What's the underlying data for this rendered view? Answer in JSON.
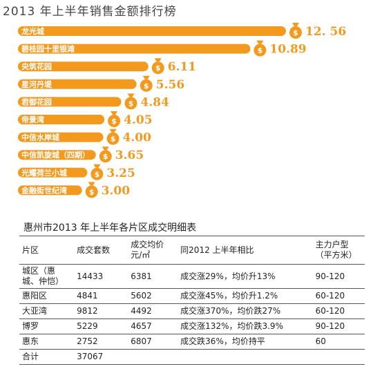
{
  "header": {
    "chart_title": "2013 年上半年销售金额排行榜"
  },
  "chart_data": {
    "type": "bar",
    "title": "2013 年上半年销售金额排行榜",
    "orientation": "horizontal",
    "categories": [
      "龙光城",
      "碧桂园十里银滩",
      "央筑花园",
      "星河丹堤",
      "君御花园",
      "帝景湾",
      "中信水岸城",
      "中信凯旋城（四期）",
      "光耀荷兰小城",
      "金融街世纪湾"
    ],
    "value_labels": [
      "12. 56",
      "10.89",
      "6.11",
      "5.56",
      "4.84",
      "4.05",
      "4.00",
      "3.65",
      "3.25",
      "3.00"
    ],
    "values": [
      12.56,
      10.89,
      6.11,
      5.56,
      4.84,
      4.05,
      4.0,
      3.65,
      3.25,
      3.0
    ],
    "bar_color": "#f39a1e",
    "icon": "money-bag-icon",
    "xlabel": "",
    "ylabel": "",
    "grid": false
  },
  "table": {
    "title": "惠州市2013 年上半年各片区成交明细表",
    "headers": [
      "片区",
      "成交套数",
      "成交均价\n元/㎡",
      "同2012 上半年相比",
      "主力户型\n（平方米）"
    ],
    "rows": [
      [
        "城区（惠城、仲恺）",
        "14433",
        "6381",
        "成交涨29%，均价升13%",
        "90-120"
      ],
      [
        "惠阳区",
        "4841",
        "5602",
        "成交涨45%，均价升1.2%",
        "60-120"
      ],
      [
        "大亚湾",
        "9812",
        "4492",
        "成交涨370%，均价跌27%",
        "60-120"
      ],
      [
        "博罗",
        "5229",
        "4657",
        "成交涨132%，均价跌3.9%",
        "90-120"
      ],
      [
        "惠东",
        "2752",
        "6807",
        "成交跌36%，均价持平",
        "60"
      ],
      [
        "合计",
        "37067",
        "",
        "",
        ""
      ]
    ]
  }
}
